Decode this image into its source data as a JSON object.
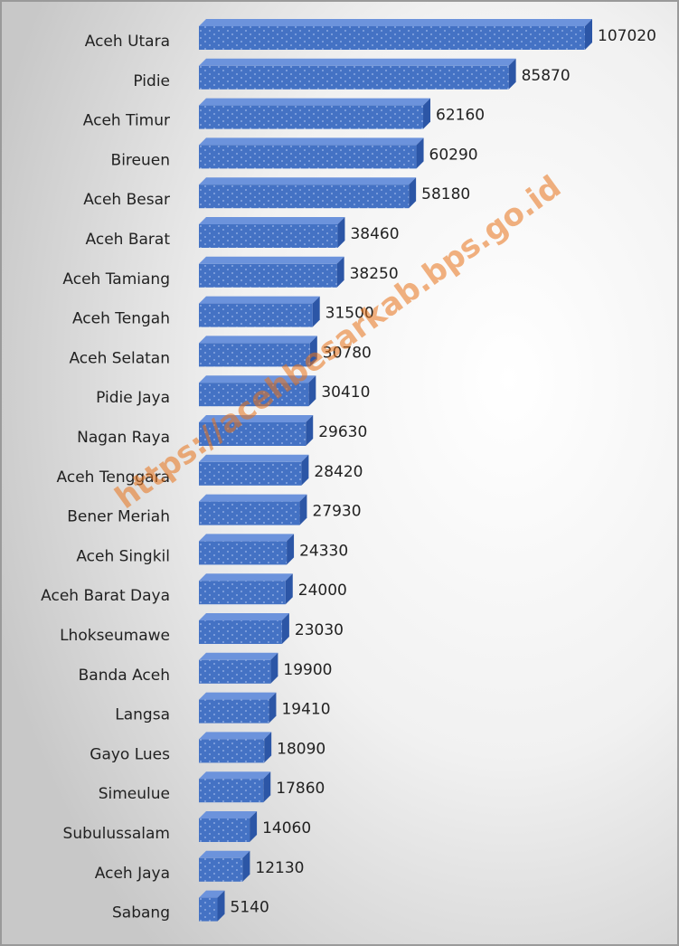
{
  "chart_data": {
    "type": "bar",
    "orientation": "horizontal",
    "color": "#4472c4",
    "watermark": "https://acehbesarkab.bps.go.id",
    "categories": [
      "Aceh Utara",
      "Pidie",
      "Aceh Timur",
      "Bireuen",
      "Aceh Besar",
      "Aceh Barat",
      "Aceh Tamiang",
      "Aceh Tengah",
      "Aceh Selatan",
      "Pidie Jaya",
      "Nagan Raya",
      "Aceh Tenggara",
      "Bener Meriah",
      "Aceh Singkil",
      "Aceh Barat Daya",
      "Lhokseumawe",
      "Banda Aceh",
      "Langsa",
      "Gayo Lues",
      "Simeulue",
      "Subulussalam",
      "Aceh Jaya",
      "Sabang"
    ],
    "values": [
      107020,
      85870,
      62160,
      60290,
      58180,
      38460,
      38250,
      31500,
      30780,
      30410,
      29630,
      28420,
      27930,
      24330,
      24000,
      23030,
      19900,
      19410,
      18090,
      17860,
      14060,
      12130,
      5140
    ]
  }
}
